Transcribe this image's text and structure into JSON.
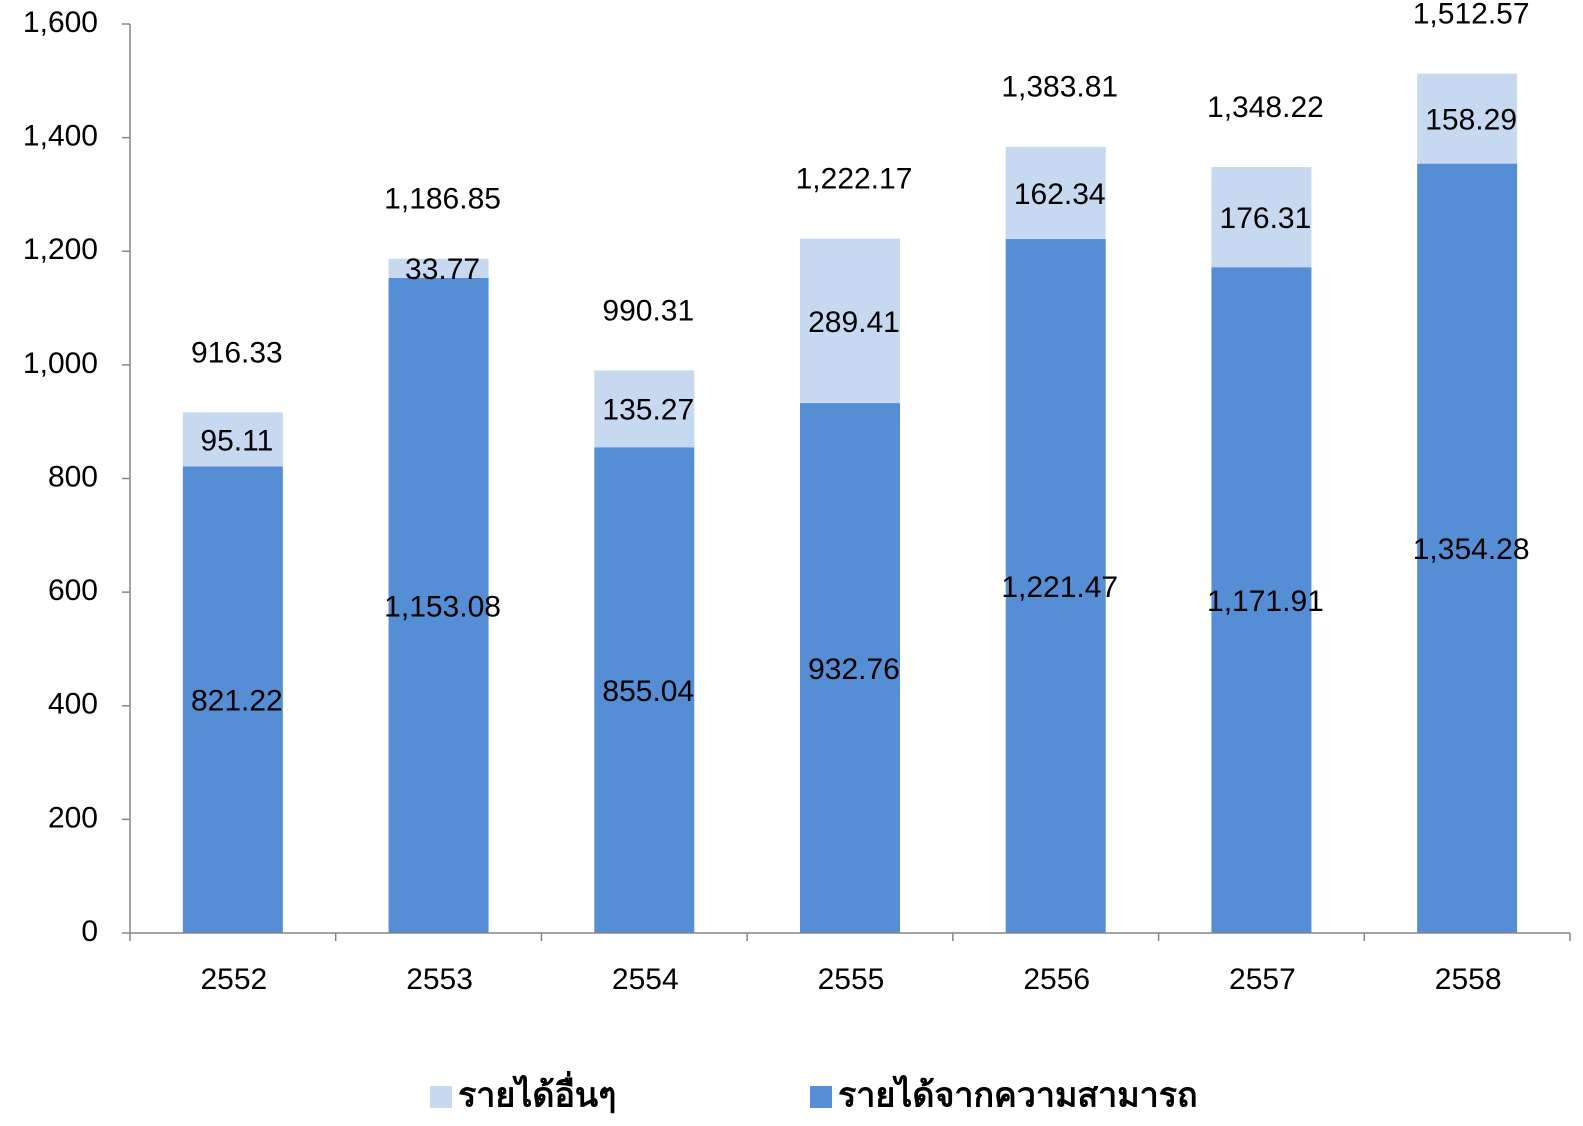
{
  "chart_data": {
    "type": "stacked_bar",
    "categories": [
      "2552",
      "2553",
      "2554",
      "2555",
      "2556",
      "2557",
      "2558"
    ],
    "series": [
      {
        "name": "รายได้จากความสามารถ",
        "color": "#558ed5",
        "values": [
          821.22,
          1153.08,
          855.04,
          932.76,
          1221.47,
          1171.91,
          1354.28
        ],
        "value_labels": [
          "821.22",
          "1,153.08",
          "855.04",
          "932.76",
          "1,221.47",
          "1,171.91",
          "1,354.28"
        ]
      },
      {
        "name": "รายได้อื่นๆ",
        "color": "#c6d9f1",
        "values": [
          95.11,
          33.77,
          135.27,
          289.41,
          162.34,
          176.31,
          158.29
        ],
        "value_labels": [
          "95.11",
          "33.77",
          "135.27",
          "289.41",
          "162.34",
          "176.31",
          "158.29"
        ]
      }
    ],
    "totals": [
      916.33,
      1186.85,
      990.31,
      1222.17,
      1383.81,
      1348.22,
      1512.57
    ],
    "total_labels": [
      "916.33",
      "1,186.85",
      "990.31",
      "1,222.17",
      "1,383.81",
      "1,348.22",
      "1,512.57"
    ],
    "ylim": [
      0,
      1600
    ],
    "yticks": [
      0,
      200,
      400,
      600,
      800,
      {
        "value": 1000,
        "label": "1,000"
      },
      {
        "value": 1200,
        "label": "1,200"
      },
      {
        "value": 1400,
        "label": "1,400"
      },
      {
        "value": 1600,
        "label": "1,600"
      }
    ],
    "grid": false
  }
}
